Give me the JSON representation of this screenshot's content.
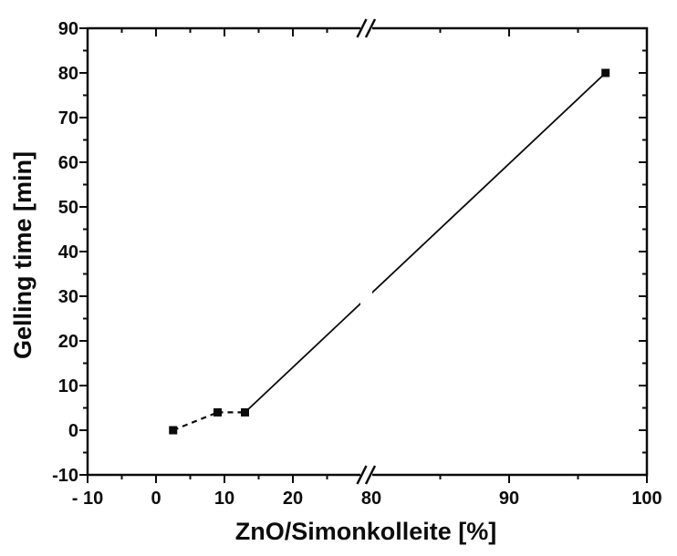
{
  "figure": {
    "background_color": "#ffffff",
    "ink_color": "#0c0c0c"
  },
  "chart_data": {
    "type": "line",
    "title": "",
    "xlabel": "ZnO/Simonkolleite [%]",
    "ylabel": "Gelling time [min]",
    "grid": false,
    "legend": null,
    "marker": "filled-square",
    "marker_color": "#0a0a0a",
    "line_color": "#0a0a0a",
    "x_values": [
      2.5,
      9,
      13,
      97
    ],
    "y_values": [
      0,
      4,
      4,
      80
    ],
    "series": [
      {
        "name": "Gelling time",
        "points": [
          [
            2.5,
            0
          ],
          [
            9,
            4
          ],
          [
            13,
            4
          ],
          [
            97,
            80
          ]
        ]
      }
    ],
    "line_segments": [
      {
        "from": 0,
        "to": 1,
        "style": "dashed"
      },
      {
        "from": 1,
        "to": 2,
        "style": "dashed"
      },
      {
        "from": 2,
        "to": 3,
        "style": "solid"
      }
    ],
    "x_axis": {
      "range_left_segment": [
        -10,
        30
      ],
      "range_right_segment": [
        80,
        100
      ],
      "axis_break": {
        "between": [
          30,
          80
        ],
        "symbol": "//"
      },
      "major_tick_values": [
        -10,
        0,
        10,
        20,
        80,
        90,
        100
      ],
      "tick_labels": [
        "- 10",
        "0",
        "10",
        "20",
        "80",
        "90",
        "100"
      ],
      "minor_tick_values": [
        -5,
        5,
        15,
        25,
        85,
        95
      ],
      "ticks_mirrored_on_top": true
    },
    "y_axis": {
      "range": [
        -10,
        90
      ],
      "major_tick_values": [
        -10,
        0,
        10,
        20,
        30,
        40,
        50,
        60,
        70,
        80,
        90
      ],
      "tick_labels": [
        "-10",
        "0",
        "10",
        "20",
        "30",
        "40",
        "50",
        "60",
        "70",
        "80",
        "90"
      ],
      "minor_tick_values": [
        -5,
        5,
        15,
        25,
        35,
        45,
        55,
        65,
        75,
        85
      ],
      "ticks_mirrored_on_right": true
    }
  }
}
